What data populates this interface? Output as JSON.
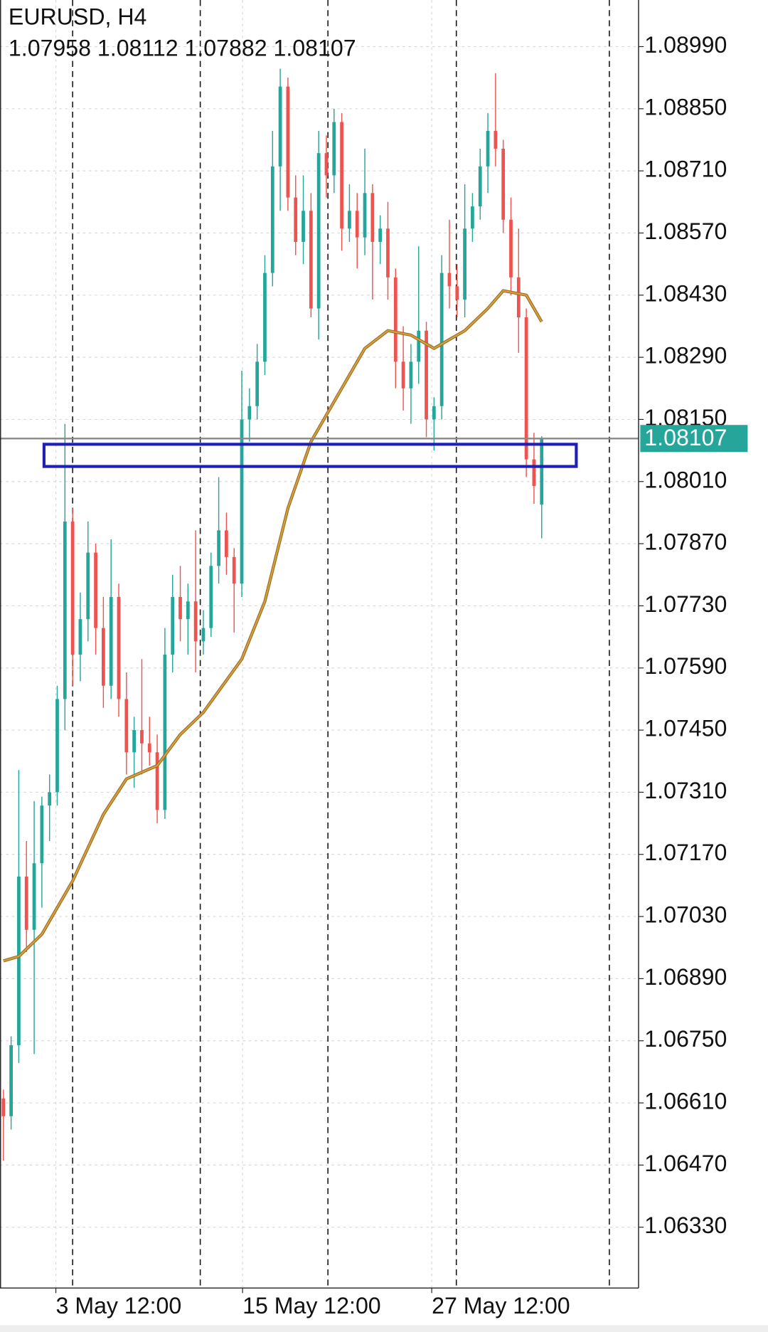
{
  "chart_data": {
    "type": "candlestick",
    "title": "EURUSD, H4",
    "subtitle": "1.07958 1.08112 1.07882 1.08107",
    "bull_color": "#26a69a",
    "bear_color": "#ef5350",
    "ohlc": [
      [
        1.0662,
        1.0664,
        1.0648,
        1.0658
      ],
      [
        1.0658,
        1.0676,
        1.0655,
        1.0674
      ],
      [
        1.0674,
        1.0736,
        1.067,
        1.0712
      ],
      [
        1.0712,
        1.072,
        1.0695,
        1.07
      ],
      [
        1.07,
        1.0729,
        1.0672,
        1.0715
      ],
      [
        1.0715,
        1.073,
        1.0705,
        1.0728
      ],
      [
        1.0728,
        1.0735,
        1.072,
        1.0731
      ],
      [
        1.0731,
        1.0755,
        1.0728,
        1.0752
      ],
      [
        1.0752,
        1.0814,
        1.0745,
        1.0792
      ],
      [
        1.0792,
        1.0795,
        1.0755,
        1.0762
      ],
      [
        1.0762,
        1.0776,
        1.0756,
        1.077
      ],
      [
        1.077,
        1.0792,
        1.0765,
        1.0785
      ],
      [
        1.0785,
        1.0787,
        1.0762,
        1.0768
      ],
      [
        1.0768,
        1.0775,
        1.075,
        1.0755
      ],
      [
        1.0755,
        1.0788,
        1.0752,
        1.0775
      ],
      [
        1.0775,
        1.0778,
        1.0748,
        1.0752
      ],
      [
        1.0752,
        1.0758,
        1.0735,
        1.074
      ],
      [
        1.074,
        1.0748,
        1.0732,
        1.0745
      ],
      [
        1.0745,
        1.0761,
        1.0735,
        1.0742
      ],
      [
        1.0742,
        1.0748,
        1.0737,
        1.074
      ],
      [
        1.074,
        1.0744,
        1.0724,
        1.0727
      ],
      [
        1.0727,
        1.0768,
        1.0725,
        1.0762
      ],
      [
        1.0762,
        1.078,
        1.0758,
        1.0775
      ],
      [
        1.0775,
        1.0782,
        1.0765,
        1.077
      ],
      [
        1.077,
        1.0778,
        1.0762,
        1.0774
      ],
      [
        1.0774,
        1.079,
        1.0758,
        1.0765
      ],
      [
        1.0765,
        1.0772,
        1.0762,
        1.0768
      ],
      [
        1.0768,
        1.0785,
        1.0766,
        1.0782
      ],
      [
        1.0782,
        1.0802,
        1.0778,
        1.079
      ],
      [
        1.079,
        1.0794,
        1.078,
        1.0784
      ],
      [
        1.0784,
        1.0786,
        1.0767,
        1.0778
      ],
      [
        1.0778,
        1.0826,
        1.0775,
        1.0815
      ],
      [
        1.0815,
        1.0822,
        1.081,
        1.0818
      ],
      [
        1.0818,
        1.0832,
        1.0815,
        1.0828
      ],
      [
        1.0828,
        1.0852,
        1.0825,
        1.0848
      ],
      [
        1.0848,
        1.088,
        1.0845,
        1.0872
      ],
      [
        1.0872,
        1.0894,
        1.0862,
        1.089
      ],
      [
        1.089,
        1.0892,
        1.0862,
        1.0865
      ],
      [
        1.0865,
        1.087,
        1.0852,
        1.0855
      ],
      [
        1.0855,
        1.087,
        1.085,
        1.0862
      ],
      [
        1.0862,
        1.0866,
        1.0838,
        1.084
      ],
      [
        1.084,
        1.088,
        1.0833,
        1.0875
      ],
      [
        1.0875,
        1.0879,
        1.0865,
        1.087
      ],
      [
        1.087,
        1.0885,
        1.0866,
        1.0882
      ],
      [
        1.0882,
        1.0884,
        1.0853,
        1.0858
      ],
      [
        1.0858,
        1.0868,
        1.0855,
        1.0862
      ],
      [
        1.0862,
        1.0866,
        1.0849,
        1.0856
      ],
      [
        1.0856,
        1.0876,
        1.0852,
        1.0866
      ],
      [
        1.0866,
        1.0868,
        1.0842,
        1.0855
      ],
      [
        1.0855,
        1.0861,
        1.085,
        1.0858
      ],
      [
        1.0858,
        1.0864,
        1.0842,
        1.0847
      ],
      [
        1.0847,
        1.0849,
        1.0822,
        1.0828
      ],
      [
        1.0828,
        1.0836,
        1.0817,
        1.0822
      ],
      [
        1.0822,
        1.0832,
        1.0814,
        1.0828
      ],
      [
        1.0828,
        1.0854,
        1.0823,
        1.0835
      ],
      [
        1.0835,
        1.0837,
        1.0811,
        1.0815
      ],
      [
        1.0815,
        1.082,
        1.0808,
        1.0818
      ],
      [
        1.0818,
        1.0852,
        1.0815,
        1.0848
      ],
      [
        1.0848,
        1.086,
        1.084,
        1.0845
      ],
      [
        1.0845,
        1.085,
        1.0838,
        1.0842
      ],
      [
        1.0842,
        1.0868,
        1.0838,
        1.0858
      ],
      [
        1.0858,
        1.0866,
        1.0855,
        1.0863
      ],
      [
        1.0863,
        1.0876,
        1.086,
        1.0872
      ],
      [
        1.0872,
        1.0884,
        1.0866,
        1.088
      ],
      [
        1.088,
        1.0893,
        1.0872,
        1.0876
      ],
      [
        1.0876,
        1.0878,
        1.0857,
        1.086
      ],
      [
        1.086,
        1.0865,
        1.0843,
        1.0847
      ],
      [
        1.0847,
        1.0858,
        1.083,
        1.0838
      ],
      [
        1.0838,
        1.084,
        1.0802,
        1.0806
      ],
      [
        1.0806,
        1.0812,
        1.0796,
        1.08
      ],
      [
        1.07958,
        1.08112,
        1.07882,
        1.08107
      ]
    ],
    "moving_average": {
      "color": "#d4a040",
      "x": [
        0,
        2,
        5,
        9,
        13,
        16,
        20,
        23,
        26,
        31,
        34,
        37,
        40,
        44,
        47,
        50,
        53,
        56,
        60,
        63,
        65,
        68,
        70
      ],
      "values": [
        1.0693,
        1.0694,
        1.0699,
        1.0711,
        1.0726,
        1.0734,
        1.0737,
        1.0744,
        1.0749,
        1.0761,
        1.0774,
        1.0795,
        1.081,
        1.0822,
        1.0831,
        1.0835,
        1.0834,
        1.0831,
        1.0835,
        1.084,
        1.0844,
        1.0843,
        1.0837
      ]
    },
    "current_price": 1.08107,
    "current_price_color": "#26a69a",
    "zone": {
      "x": [
        5.28,
        74.5
      ],
      "y": [
        1.08044,
        1.08094
      ],
      "color": "#1f1fb8"
    },
    "separators": [
      9.0,
      25.6,
      42.2,
      58.9,
      78.8
    ],
    "xlim": [
      -0.44,
      82.6
    ],
    "ylim": [
      1.06193,
      1.09095
    ],
    "xticks": [
      {
        "value": 6.82,
        "label": "3 May 12:00"
      },
      {
        "value": 31.1,
        "label": "15 May 12:00"
      },
      {
        "value": 55.7,
        "label": "27 May 12:00"
      }
    ],
    "yticks": [
      {
        "value": 1.0899,
        "label": "1.08990"
      },
      {
        "value": 1.0885,
        "label": "1.08850"
      },
      {
        "value": 1.0871,
        "label": "1.08710"
      },
      {
        "value": 1.0857,
        "label": "1.08570"
      },
      {
        "value": 1.0843,
        "label": "1.08430"
      },
      {
        "value": 1.0829,
        "label": "1.08290"
      },
      {
        "value": 1.0815,
        "label": "1.08150"
      },
      {
        "value": 1.0801,
        "label": "1.08010"
      },
      {
        "value": 1.0787,
        "label": "1.07870"
      },
      {
        "value": 1.0773,
        "label": "1.07730"
      },
      {
        "value": 1.0759,
        "label": "1.07590"
      },
      {
        "value": 1.0745,
        "label": "1.07450"
      },
      {
        "value": 1.0731,
        "label": "1.07310"
      },
      {
        "value": 1.0717,
        "label": "1.07170"
      },
      {
        "value": 1.0703,
        "label": "1.07030"
      },
      {
        "value": 1.0689,
        "label": "1.06890"
      },
      {
        "value": 1.0675,
        "label": "1.06750"
      },
      {
        "value": 1.0661,
        "label": "1.06610"
      },
      {
        "value": 1.0647,
        "label": "1.06470"
      },
      {
        "value": 1.0633,
        "label": "1.06330"
      }
    ],
    "grid": true
  }
}
